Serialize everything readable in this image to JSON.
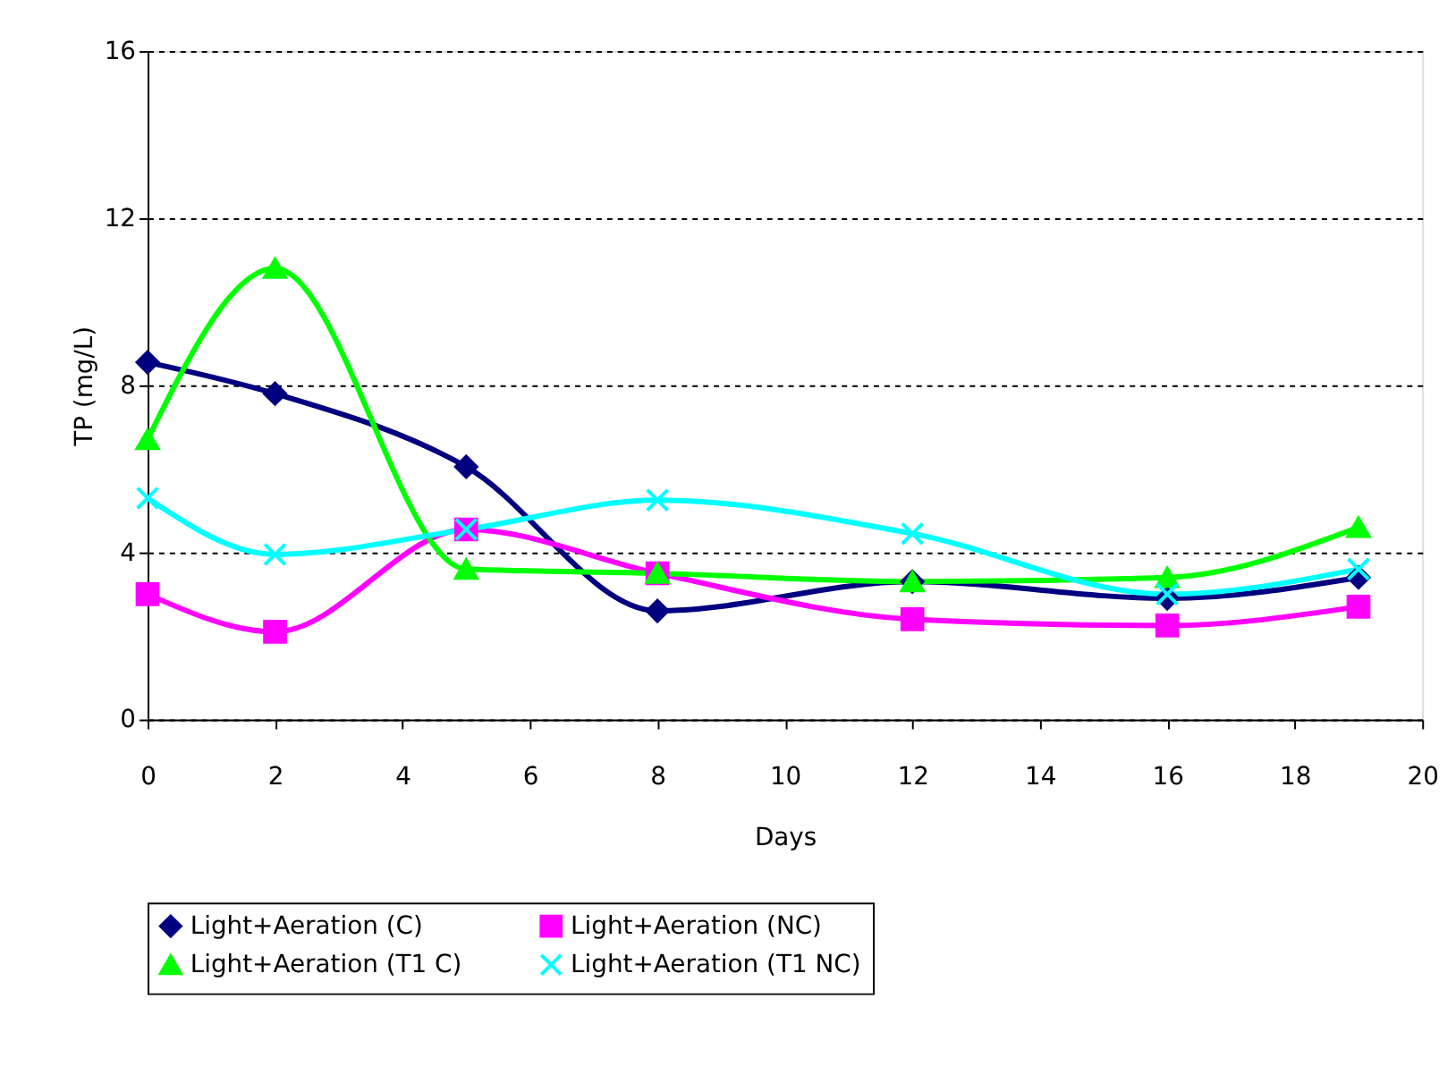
{
  "chart_data": {
    "type": "line",
    "xlabel": "Days",
    "ylabel": "TP (mg/L)",
    "x": [
      0,
      2,
      5,
      8,
      12,
      16,
      19
    ],
    "xlim": [
      0,
      20
    ],
    "xticks": [
      0,
      2,
      4,
      6,
      8,
      10,
      12,
      14,
      16,
      18,
      20
    ],
    "ylim": [
      0,
      16
    ],
    "yticks": [
      0,
      4,
      8,
      12,
      16
    ],
    "grid": "y",
    "legend": "bottom",
    "line_style": "solid",
    "series": [
      {
        "name": "Light+Aeration (C)",
        "color": "#000080",
        "marker": "diamond",
        "values": [
          8.55,
          7.8,
          6.05,
          2.6,
          3.3,
          2.9,
          3.4
        ]
      },
      {
        "name": "Light+Aeration (NC)",
        "color": "#ff00ff",
        "marker": "square",
        "values": [
          3.0,
          2.1,
          4.55,
          3.5,
          2.4,
          2.25,
          2.7
        ]
      },
      {
        "name": "Light+Aeration (T1 C)",
        "color": "#00ff00",
        "marker": "triangle",
        "values": [
          6.7,
          10.8,
          3.6,
          3.5,
          3.3,
          3.4,
          4.6
        ]
      },
      {
        "name": "Light+Aeration (T1 NC)",
        "color": "#00ffff",
        "marker": "cross",
        "values": [
          5.3,
          3.95,
          4.55,
          5.25,
          4.45,
          3.0,
          3.6
        ]
      }
    ]
  }
}
